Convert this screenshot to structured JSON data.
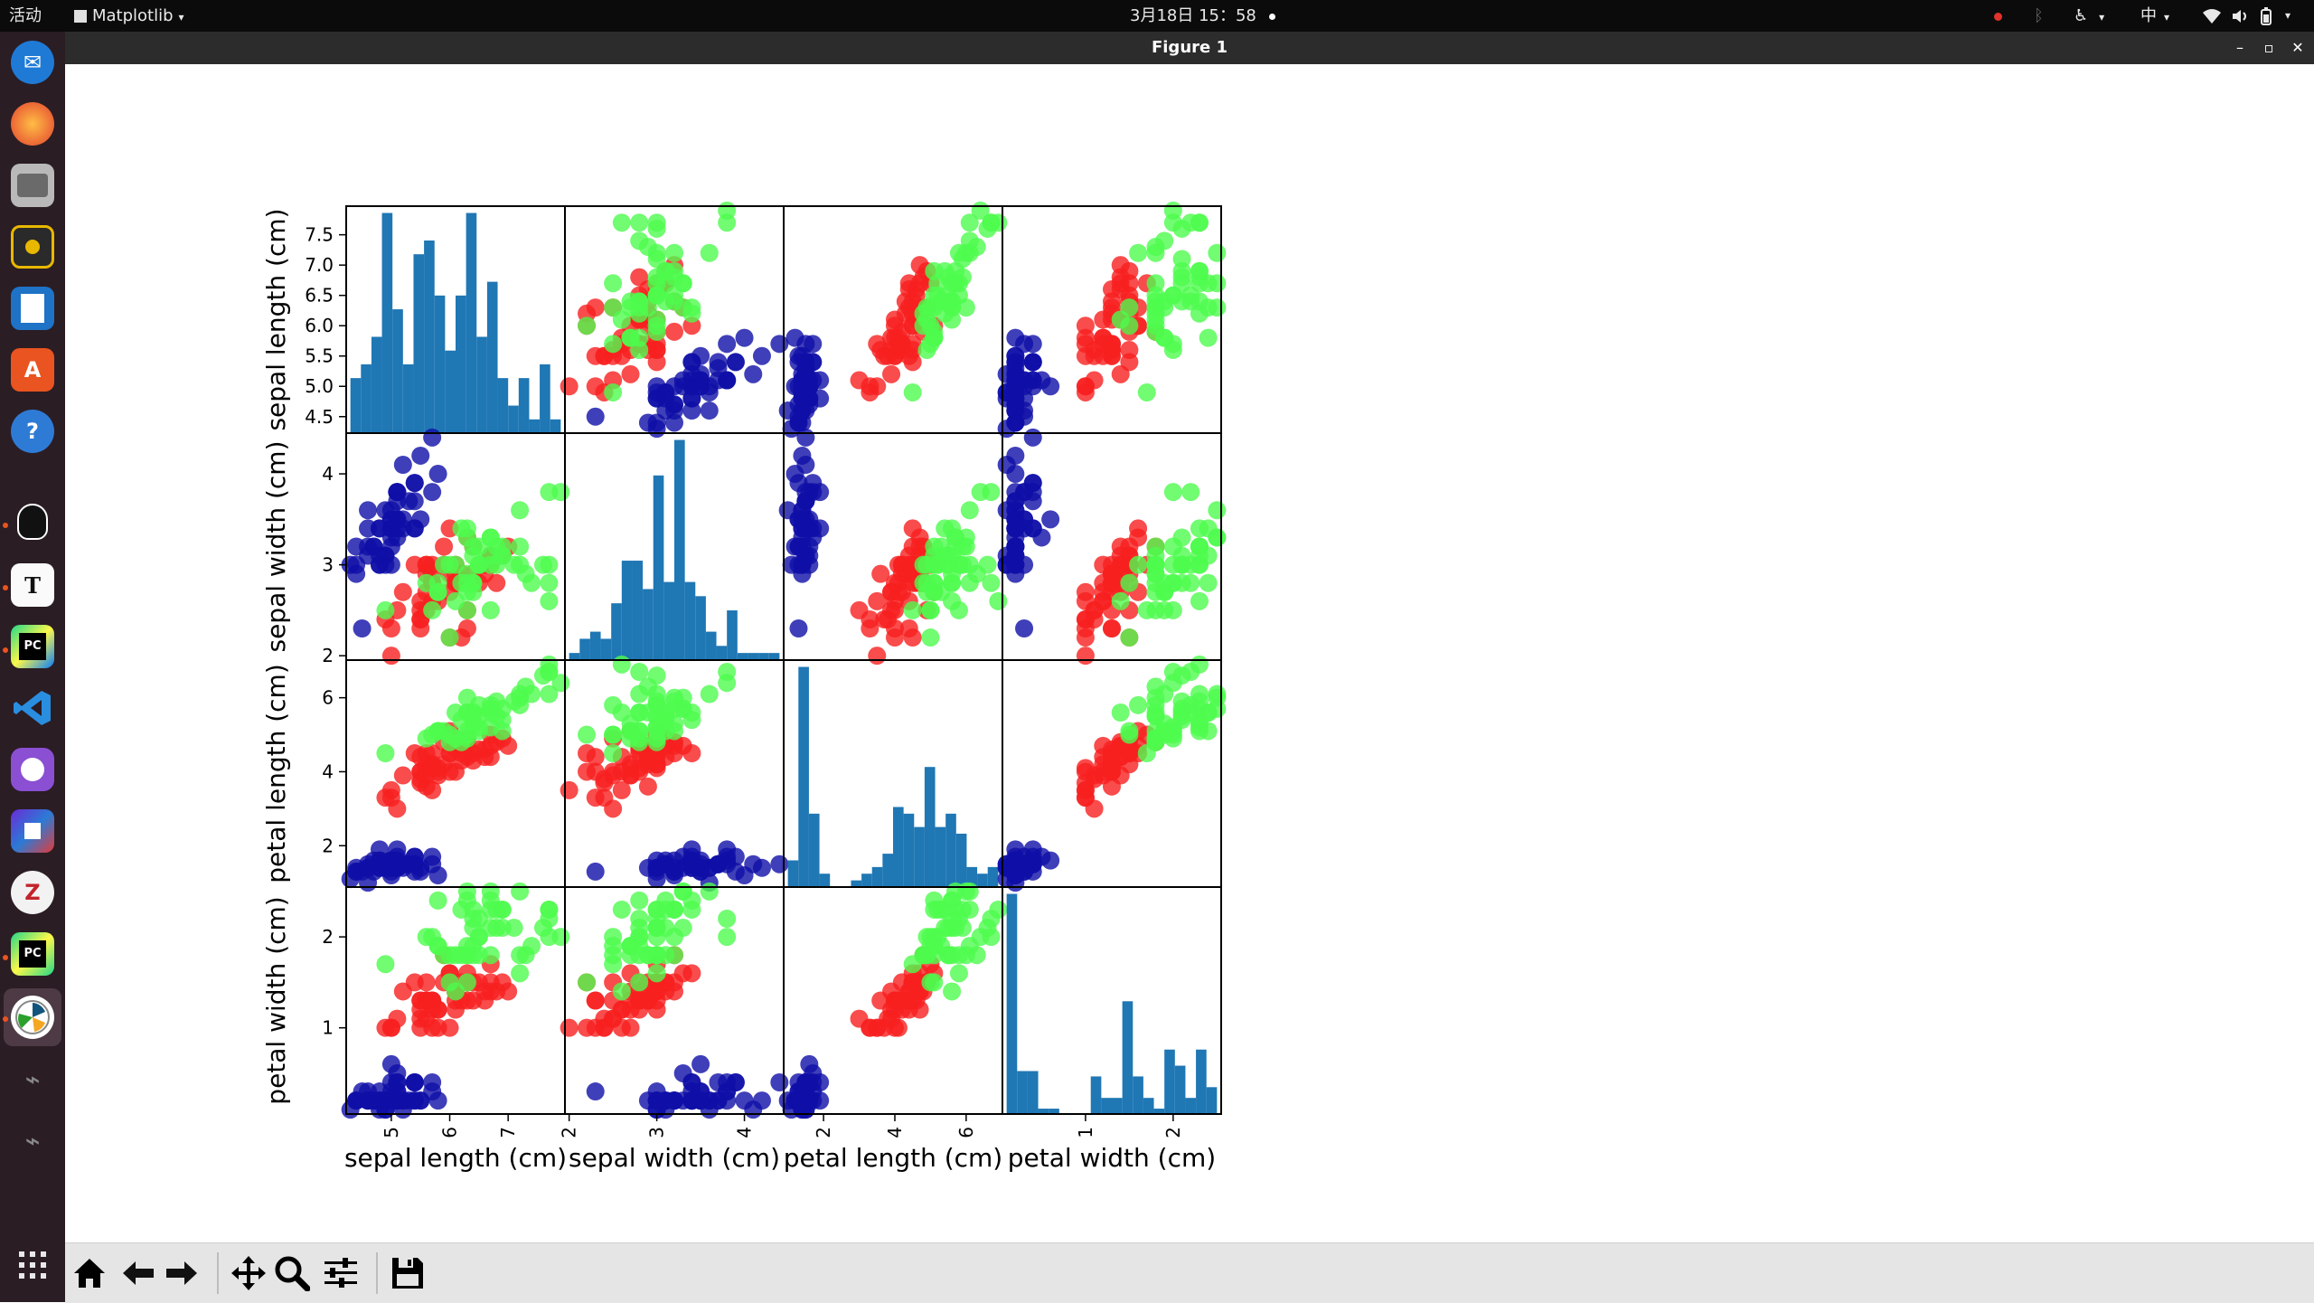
{
  "topbar": {
    "activities": "活动",
    "app_menu": "Matplotlib",
    "clock": "3月18日  15：58",
    "input_method": "中"
  },
  "window": {
    "title": "Figure 1"
  },
  "dock": {
    "items": [
      "thunderbird-icon",
      "firefox-icon",
      "files-icon",
      "rhythmbox-icon",
      "libreoffice-writer-icon",
      "software-center-icon",
      "help-icon",
      "qq-icon",
      "typora-icon",
      "pycharm-icon",
      "vscode-icon",
      "github-desktop-icon",
      "pixel-app-icon",
      "zotero-icon",
      "pycharm-pro-icon",
      "matplotlib-icon",
      "usb-drive-icon",
      "usb-drive-icon",
      "show-apps-icon"
    ],
    "active_item": "matplotlib-icon"
  },
  "toolbar": {
    "buttons": [
      "home-icon",
      "back-icon",
      "forward-icon",
      "pan-icon",
      "zoom-icon",
      "configure-subplots-icon",
      "save-icon"
    ]
  },
  "chart_data": {
    "type": "scatter-matrix",
    "variables": [
      "sepal length (cm)",
      "sepal width (cm)",
      "petal length (cm)",
      "petal width (cm)"
    ],
    "colors": {
      "class_0": "#0f0fa8",
      "class_1": "#f71f1f",
      "class_2": "#4dfb4d",
      "hist": "#1f77b4"
    },
    "y_ticks": {
      "sepal length (cm)": [
        "4.5",
        "5.0",
        "5.5",
        "6.0",
        "6.5",
        "7.0",
        "7.5"
      ],
      "sepal width (cm)": [
        "2",
        "3",
        "4"
      ],
      "petal length (cm)": [
        "2",
        "4",
        "6"
      ],
      "petal width (cm)": [
        "1",
        "2"
      ]
    },
    "x_ticks": {
      "sepal length (cm)": [
        "5",
        "6",
        "7"
      ],
      "sepal width (cm)": [
        "2",
        "3",
        "4"
      ],
      "petal length (cm)": [
        "2",
        "4",
        "6"
      ],
      "petal width (cm)": [
        "1",
        "2"
      ]
    },
    "ranges": [
      [
        4.3,
        7.9
      ],
      [
        2.0,
        4.4
      ],
      [
        1.0,
        6.9
      ],
      [
        0.1,
        2.5
      ]
    ],
    "hist_bins": 20,
    "hist_counts": [
      [
        4,
        5,
        7,
        16,
        9,
        5,
        13,
        14,
        10,
        6,
        10,
        16,
        7,
        11,
        4,
        2,
        4,
        1,
        5,
        1
      ],
      [
        1,
        3,
        4,
        3,
        8,
        14,
        14,
        10,
        26,
        11,
        31,
        11,
        9,
        4,
        2,
        7,
        1,
        1,
        1,
        1
      ],
      [
        4,
        33,
        11,
        2,
        0,
        0,
        1,
        2,
        3,
        5,
        12,
        11,
        9,
        18,
        9,
        11,
        8,
        3,
        2,
        3
      ],
      [
        41,
        8,
        8,
        1,
        1,
        0,
        0,
        0,
        7,
        3,
        3,
        21,
        7,
        3,
        1,
        12,
        9,
        3,
        12,
        5
      ]
    ],
    "points": [
      [
        5.1,
        3.5,
        1.4,
        0.2,
        0
      ],
      [
        4.9,
        3.0,
        1.4,
        0.2,
        0
      ],
      [
        4.7,
        3.2,
        1.3,
        0.2,
        0
      ],
      [
        4.6,
        3.1,
        1.5,
        0.2,
        0
      ],
      [
        5.0,
        3.6,
        1.4,
        0.2,
        0
      ],
      [
        5.4,
        3.9,
        1.7,
        0.4,
        0
      ],
      [
        4.6,
        3.4,
        1.4,
        0.3,
        0
      ],
      [
        5.0,
        3.4,
        1.5,
        0.2,
        0
      ],
      [
        4.4,
        2.9,
        1.4,
        0.2,
        0
      ],
      [
        4.9,
        3.1,
        1.5,
        0.1,
        0
      ],
      [
        5.4,
        3.7,
        1.5,
        0.2,
        0
      ],
      [
        4.8,
        3.4,
        1.6,
        0.2,
        0
      ],
      [
        4.8,
        3.0,
        1.4,
        0.1,
        0
      ],
      [
        4.3,
        3.0,
        1.1,
        0.1,
        0
      ],
      [
        5.8,
        4.0,
        1.2,
        0.2,
        0
      ],
      [
        5.7,
        4.4,
        1.5,
        0.4,
        0
      ],
      [
        5.4,
        3.9,
        1.3,
        0.4,
        0
      ],
      [
        5.1,
        3.5,
        1.4,
        0.3,
        0
      ],
      [
        5.7,
        3.8,
        1.7,
        0.3,
        0
      ],
      [
        5.1,
        3.8,
        1.5,
        0.3,
        0
      ],
      [
        5.4,
        3.4,
        1.7,
        0.2,
        0
      ],
      [
        5.1,
        3.7,
        1.5,
        0.4,
        0
      ],
      [
        4.6,
        3.6,
        1.0,
        0.2,
        0
      ],
      [
        5.1,
        3.3,
        1.7,
        0.5,
        0
      ],
      [
        4.8,
        3.4,
        1.9,
        0.2,
        0
      ],
      [
        5.0,
        3.0,
        1.6,
        0.2,
        0
      ],
      [
        5.0,
        3.4,
        1.6,
        0.4,
        0
      ],
      [
        5.2,
        3.5,
        1.5,
        0.2,
        0
      ],
      [
        5.2,
        3.4,
        1.4,
        0.2,
        0
      ],
      [
        4.7,
        3.2,
        1.6,
        0.2,
        0
      ],
      [
        4.8,
        3.1,
        1.6,
        0.2,
        0
      ],
      [
        5.4,
        3.4,
        1.5,
        0.4,
        0
      ],
      [
        5.2,
        4.1,
        1.5,
        0.1,
        0
      ],
      [
        5.5,
        4.2,
        1.4,
        0.2,
        0
      ],
      [
        4.9,
        3.1,
        1.5,
        0.2,
        0
      ],
      [
        5.0,
        3.2,
        1.2,
        0.2,
        0
      ],
      [
        5.5,
        3.5,
        1.3,
        0.2,
        0
      ],
      [
        4.9,
        3.6,
        1.4,
        0.1,
        0
      ],
      [
        4.4,
        3.0,
        1.3,
        0.2,
        0
      ],
      [
        5.1,
        3.4,
        1.5,
        0.2,
        0
      ],
      [
        5.0,
        3.5,
        1.3,
        0.3,
        0
      ],
      [
        4.5,
        2.3,
        1.3,
        0.3,
        0
      ],
      [
        4.4,
        3.2,
        1.3,
        0.2,
        0
      ],
      [
        5.0,
        3.5,
        1.6,
        0.6,
        0
      ],
      [
        5.1,
        3.8,
        1.9,
        0.4,
        0
      ],
      [
        4.8,
        3.0,
        1.4,
        0.3,
        0
      ],
      [
        5.1,
        3.8,
        1.6,
        0.2,
        0
      ],
      [
        4.6,
        3.2,
        1.4,
        0.2,
        0
      ],
      [
        5.3,
        3.7,
        1.5,
        0.2,
        0
      ],
      [
        5.0,
        3.3,
        1.4,
        0.2,
        0
      ],
      [
        7.0,
        3.2,
        4.7,
        1.4,
        1
      ],
      [
        6.4,
        3.2,
        4.5,
        1.5,
        1
      ],
      [
        6.9,
        3.1,
        4.9,
        1.5,
        1
      ],
      [
        5.5,
        2.3,
        4.0,
        1.3,
        1
      ],
      [
        6.5,
        2.8,
        4.6,
        1.5,
        1
      ],
      [
        5.7,
        2.8,
        4.5,
        1.3,
        1
      ],
      [
        6.3,
        3.3,
        4.7,
        1.6,
        1
      ],
      [
        4.9,
        2.4,
        3.3,
        1.0,
        1
      ],
      [
        6.6,
        2.9,
        4.6,
        1.3,
        1
      ],
      [
        5.2,
        2.7,
        3.9,
        1.4,
        1
      ],
      [
        5.0,
        2.0,
        3.5,
        1.0,
        1
      ],
      [
        5.9,
        3.0,
        4.2,
        1.5,
        1
      ],
      [
        6.0,
        2.2,
        4.0,
        1.0,
        1
      ],
      [
        6.1,
        2.9,
        4.7,
        1.4,
        1
      ],
      [
        5.6,
        2.9,
        3.6,
        1.3,
        1
      ],
      [
        6.7,
        3.1,
        4.4,
        1.4,
        1
      ],
      [
        5.6,
        3.0,
        4.5,
        1.5,
        1
      ],
      [
        5.8,
        2.7,
        4.1,
        1.0,
        1
      ],
      [
        6.2,
        2.2,
        4.5,
        1.5,
        1
      ],
      [
        5.6,
        2.5,
        3.9,
        1.1,
        1
      ],
      [
        5.9,
        3.2,
        4.8,
        1.8,
        1
      ],
      [
        6.1,
        2.8,
        4.0,
        1.3,
        1
      ],
      [
        6.3,
        2.5,
        4.9,
        1.5,
        1
      ],
      [
        6.1,
        2.8,
        4.7,
        1.2,
        1
      ],
      [
        6.4,
        2.9,
        4.3,
        1.3,
        1
      ],
      [
        6.6,
        3.0,
        4.4,
        1.4,
        1
      ],
      [
        6.8,
        2.8,
        4.8,
        1.4,
        1
      ],
      [
        6.7,
        3.0,
        5.0,
        1.7,
        1
      ],
      [
        6.0,
        2.9,
        4.5,
        1.5,
        1
      ],
      [
        5.7,
        2.6,
        3.5,
        1.0,
        1
      ],
      [
        5.5,
        2.4,
        3.8,
        1.1,
        1
      ],
      [
        5.5,
        2.4,
        3.7,
        1.0,
        1
      ],
      [
        5.8,
        2.7,
        3.9,
        1.2,
        1
      ],
      [
        6.0,
        2.7,
        5.1,
        1.6,
        1
      ],
      [
        5.4,
        3.0,
        4.5,
        1.5,
        1
      ],
      [
        6.0,
        3.4,
        4.5,
        1.6,
        1
      ],
      [
        6.7,
        3.1,
        4.7,
        1.5,
        1
      ],
      [
        6.3,
        2.3,
        4.4,
        1.3,
        1
      ],
      [
        5.6,
        3.0,
        4.1,
        1.3,
        1
      ],
      [
        5.5,
        2.5,
        4.0,
        1.3,
        1
      ],
      [
        5.5,
        2.6,
        4.4,
        1.2,
        1
      ],
      [
        6.1,
        3.0,
        4.6,
        1.4,
        1
      ],
      [
        5.8,
        2.6,
        4.0,
        1.2,
        1
      ],
      [
        5.0,
        2.3,
        3.3,
        1.0,
        1
      ],
      [
        5.6,
        2.7,
        4.2,
        1.3,
        1
      ],
      [
        5.7,
        3.0,
        4.2,
        1.2,
        1
      ],
      [
        5.7,
        2.9,
        4.2,
        1.3,
        1
      ],
      [
        6.2,
        2.9,
        4.3,
        1.3,
        1
      ],
      [
        5.1,
        2.5,
        3.0,
        1.1,
        1
      ],
      [
        5.7,
        2.8,
        4.1,
        1.3,
        1
      ],
      [
        6.3,
        3.3,
        6.0,
        2.5,
        2
      ],
      [
        5.8,
        2.7,
        5.1,
        1.9,
        2
      ],
      [
        7.1,
        3.0,
        5.9,
        2.1,
        2
      ],
      [
        6.3,
        2.9,
        5.6,
        1.8,
        2
      ],
      [
        6.5,
        3.0,
        5.8,
        2.2,
        2
      ],
      [
        7.6,
        3.0,
        6.6,
        2.1,
        2
      ],
      [
        4.9,
        2.5,
        4.5,
        1.7,
        2
      ],
      [
        7.3,
        2.9,
        6.3,
        1.8,
        2
      ],
      [
        6.7,
        2.5,
        5.8,
        1.8,
        2
      ],
      [
        7.2,
        3.6,
        6.1,
        2.5,
        2
      ],
      [
        6.5,
        3.2,
        5.1,
        2.0,
        2
      ],
      [
        6.4,
        2.7,
        5.3,
        1.9,
        2
      ],
      [
        6.8,
        3.0,
        5.5,
        2.1,
        2
      ],
      [
        5.7,
        2.5,
        5.0,
        2.0,
        2
      ],
      [
        5.8,
        2.8,
        5.1,
        2.4,
        2
      ],
      [
        6.4,
        3.2,
        5.3,
        2.3,
        2
      ],
      [
        6.5,
        3.0,
        5.5,
        1.8,
        2
      ],
      [
        7.7,
        3.8,
        6.7,
        2.2,
        2
      ],
      [
        7.7,
        2.6,
        6.9,
        2.3,
        2
      ],
      [
        6.0,
        2.2,
        5.0,
        1.5,
        2
      ],
      [
        6.9,
        3.2,
        5.7,
        2.3,
        2
      ],
      [
        5.6,
        2.8,
        4.9,
        2.0,
        2
      ],
      [
        7.7,
        2.8,
        6.7,
        2.0,
        2
      ],
      [
        6.3,
        2.7,
        4.9,
        1.8,
        2
      ],
      [
        6.7,
        3.3,
        5.7,
        2.1,
        2
      ],
      [
        7.2,
        3.2,
        6.0,
        1.8,
        2
      ],
      [
        6.2,
        2.8,
        4.8,
        1.8,
        2
      ],
      [
        6.1,
        3.0,
        4.9,
        1.8,
        2
      ],
      [
        6.4,
        2.8,
        5.6,
        2.1,
        2
      ],
      [
        7.2,
        3.0,
        5.8,
        1.6,
        2
      ],
      [
        7.4,
        2.8,
        6.1,
        1.9,
        2
      ],
      [
        7.9,
        3.8,
        6.4,
        2.0,
        2
      ],
      [
        6.4,
        2.8,
        5.6,
        2.2,
        2
      ],
      [
        6.3,
        2.8,
        5.1,
        1.5,
        2
      ],
      [
        6.1,
        2.6,
        5.6,
        1.4,
        2
      ],
      [
        7.7,
        3.0,
        6.1,
        2.3,
        2
      ],
      [
        6.3,
        3.4,
        5.6,
        2.4,
        2
      ],
      [
        6.4,
        3.1,
        5.5,
        1.8,
        2
      ],
      [
        6.0,
        3.0,
        4.8,
        1.8,
        2
      ],
      [
        6.9,
        3.1,
        5.4,
        2.1,
        2
      ],
      [
        6.7,
        3.1,
        5.6,
        2.4,
        2
      ],
      [
        6.9,
        3.1,
        5.1,
        2.3,
        2
      ],
      [
        5.8,
        2.7,
        5.1,
        1.9,
        2
      ],
      [
        6.8,
        3.2,
        5.9,
        2.3,
        2
      ],
      [
        6.7,
        3.3,
        5.7,
        2.5,
        2
      ],
      [
        6.7,
        3.0,
        5.2,
        2.3,
        2
      ],
      [
        6.3,
        2.5,
        5.0,
        1.9,
        2
      ],
      [
        6.5,
        3.0,
        5.2,
        2.0,
        2
      ],
      [
        6.2,
        3.4,
        5.4,
        2.3,
        2
      ],
      [
        5.9,
        3.0,
        5.1,
        1.8,
        2
      ]
    ]
  }
}
